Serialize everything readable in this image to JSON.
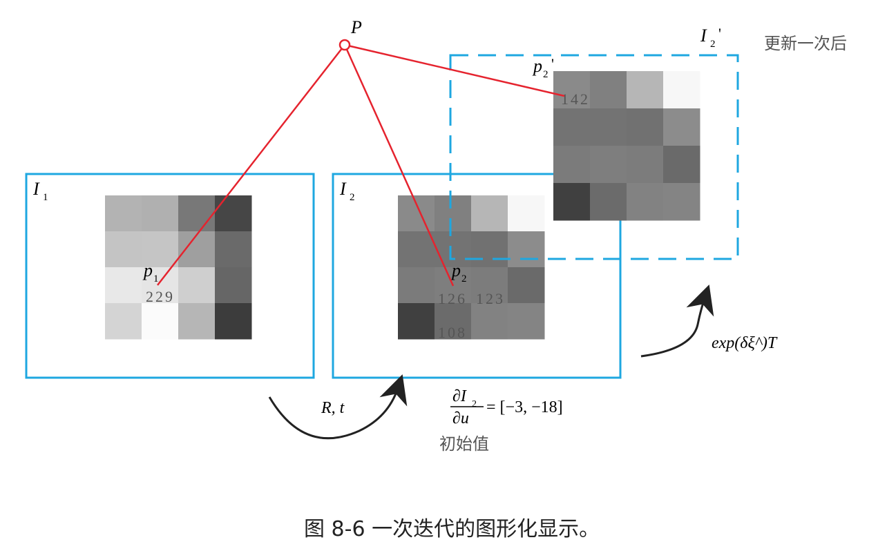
{
  "labels": {
    "point_P": "P",
    "frame1": "I",
    "frame1_sub": "1",
    "frame2": "I",
    "frame2_sub": "2",
    "frame3": "I",
    "frame3_sub": "2",
    "frame3_prime": "'",
    "updated_text": "更新一次后",
    "p1": "p",
    "p1_sub": "1",
    "p2": "p",
    "p2_sub": "2",
    "p2b": "p",
    "p2b_sub": "2",
    "p2b_prime": "'",
    "rt": "R, t",
    "exp_label": "exp(δξ^)T",
    "gradient_num": "∂I",
    "gradient_num_sub": "2",
    "gradient_den": "∂u",
    "gradient_value": "= [−3, −18]",
    "initial_value": "初始值",
    "caption": "图 8-6   一次迭代的图形化显示。"
  },
  "pixel_values": {
    "v229": "229",
    "v126": "126",
    "v123": "123",
    "v108": "108",
    "v142": "142"
  },
  "grids": {
    "img1": [
      [
        "#b3b3b3",
        "#b0b0b0",
        "#787878",
        "#464646"
      ],
      [
        "#c4c4c4",
        "#c5c5c5",
        "#9f9f9f",
        "#6a6a6a"
      ],
      [
        "#e8e8e8",
        "#e5e5e5",
        "#cfcfcf",
        "#666666"
      ],
      [
        "#d4d4d4",
        "#fbfbfb",
        "#b6b6b6",
        "#3c3c3c"
      ]
    ],
    "img2": [
      [
        "#8a8a8a",
        "#808080",
        "#b6b6b6",
        "#f7f7f7"
      ],
      [
        "#737373",
        "#737373",
        "#717171",
        "#8c8c8c"
      ],
      [
        "#7b7b7b",
        "#7e7e7e",
        "#7c7c7c",
        "#6a6a6a"
      ],
      [
        "#404040",
        "#6b6b6b",
        "#828282",
        "#848484"
      ]
    ],
    "img3": [
      [
        "#8a8a8a",
        "#808080",
        "#b6b6b6",
        "#f7f7f7"
      ],
      [
        "#737373",
        "#737373",
        "#717171",
        "#8c8c8c"
      ],
      [
        "#7b7b7b",
        "#7e7e7e",
        "#7c7c7c",
        "#6a6a6a"
      ],
      [
        "#404040",
        "#6b6b6b",
        "#828282",
        "#848484"
      ]
    ]
  },
  "colors": {
    "frame_border": "#1ea7e0",
    "projection_line": "#e5232e",
    "arrow": "#222222",
    "label_gray": "#555555"
  }
}
